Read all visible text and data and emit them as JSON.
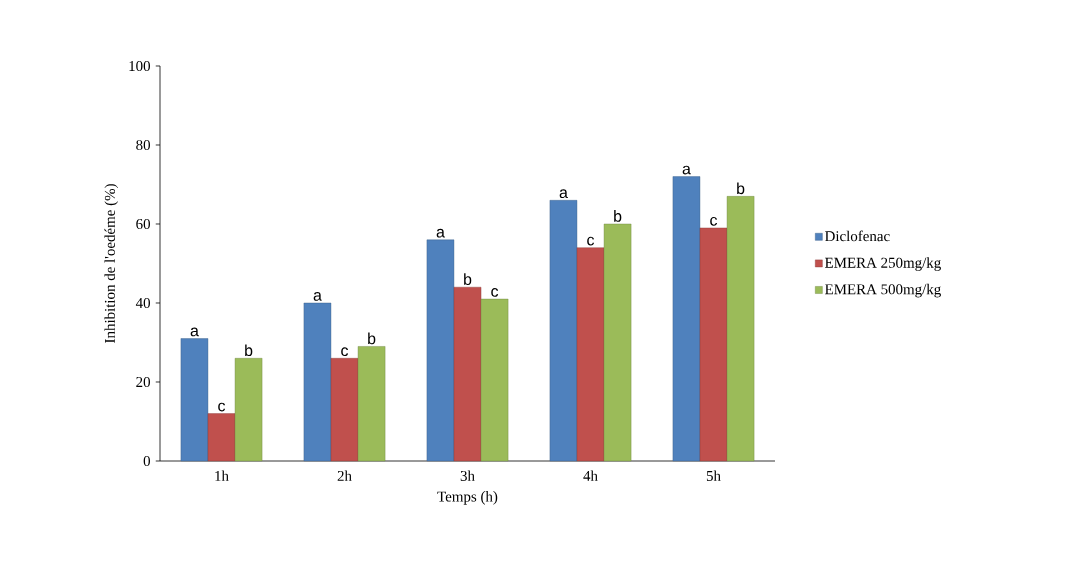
{
  "chart_data": {
    "type": "bar",
    "xlabel": "Temps (h)",
    "ylabel": "Inhibition de l'oedéme (%)",
    "categories": [
      "1h",
      "2h",
      "3h",
      "4h",
      "5h"
    ],
    "series": [
      {
        "name": "Diclofenac",
        "color": "#4f81bd",
        "values": [
          31,
          40,
          56,
          66,
          72
        ]
      },
      {
        "name": "EMERA 250mg/kg",
        "color": "#c0504d",
        "values": [
          12,
          26,
          44,
          54,
          59
        ]
      },
      {
        "name": "EMERA 500mg/kg",
        "color": "#9bbb59",
        "values": [
          26,
          29,
          41,
          60,
          67
        ]
      }
    ],
    "ylim": [
      0,
      100
    ],
    "yticks": [
      0,
      20,
      40,
      60,
      80,
      100
    ],
    "grid": false,
    "legend": "right",
    "annotations": [
      "a",
      "c",
      "b",
      "a",
      "c",
      "b",
      "a",
      "b",
      "c",
      "a",
      "c",
      "b",
      "a",
      "c",
      "b"
    ]
  }
}
